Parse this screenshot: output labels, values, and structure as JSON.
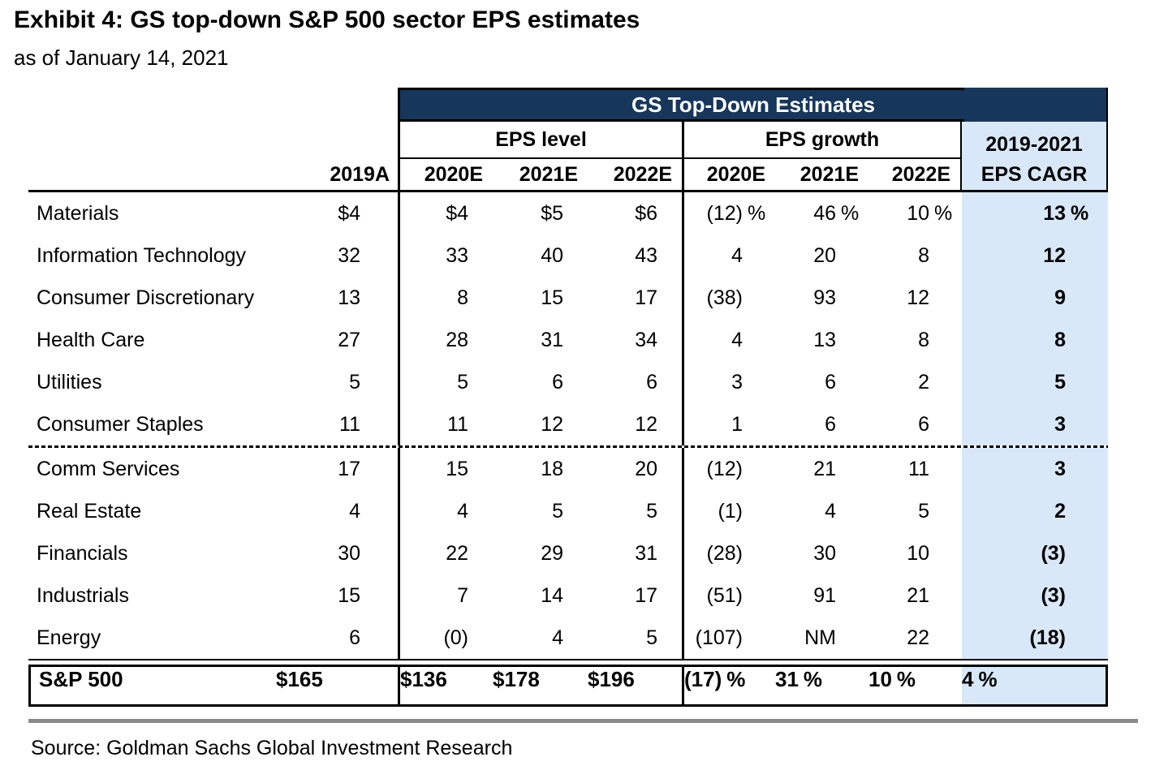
{
  "title": "Exhibit 4: GS top-down S&P 500 sector EPS estimates",
  "subtitle": "as of January 14, 2021",
  "colors": {
    "navy": "#16365C",
    "light_blue": "#D9E8F8"
  },
  "table": {
    "banner": "GS Top-Down Estimates",
    "group_headers": {
      "eps_level": "EPS level",
      "eps_growth": "EPS growth",
      "cagr_line1": "2019-2021",
      "cagr_line2": "EPS CAGR"
    },
    "col_headers": {
      "base_year": "2019A",
      "level_years": [
        "2020E",
        "2021E",
        "2022E"
      ],
      "growth_years": [
        "2020E",
        "2021E",
        "2022E"
      ]
    },
    "rows": [
      {
        "sector": "Materials",
        "eps_2019a": "$4",
        "level": [
          "$4",
          "$5",
          "$6"
        ],
        "growth": [
          "(12)%",
          "46 %",
          "10 %"
        ],
        "cagr": "13 %"
      },
      {
        "sector": "Information Technology",
        "eps_2019a": "32",
        "level": [
          "33",
          "40",
          "43"
        ],
        "growth": [
          "4",
          "20",
          "8"
        ],
        "cagr": "12"
      },
      {
        "sector": "Consumer Discretionary",
        "eps_2019a": "13",
        "level": [
          "8",
          "15",
          "17"
        ],
        "growth": [
          "(38)",
          "93",
          "12"
        ],
        "cagr": "9"
      },
      {
        "sector": "Health Care",
        "eps_2019a": "27",
        "level": [
          "28",
          "31",
          "34"
        ],
        "growth": [
          "4",
          "13",
          "8"
        ],
        "cagr": "8"
      },
      {
        "sector": "Utilities",
        "eps_2019a": "5",
        "level": [
          "5",
          "6",
          "6"
        ],
        "growth": [
          "3",
          "6",
          "2"
        ],
        "cagr": "5"
      },
      {
        "sector": "Consumer Staples",
        "eps_2019a": "11",
        "level": [
          "11",
          "12",
          "12"
        ],
        "growth": [
          "1",
          "6",
          "6"
        ],
        "cagr": "3"
      },
      {
        "sector": "Comm Services",
        "eps_2019a": "17",
        "level": [
          "15",
          "18",
          "20"
        ],
        "growth": [
          "(12)",
          "21",
          "11"
        ],
        "cagr": "3"
      },
      {
        "sector": "Real Estate",
        "eps_2019a": "4",
        "level": [
          "4",
          "5",
          "5"
        ],
        "growth": [
          "(1)",
          "4",
          "5"
        ],
        "cagr": "2"
      },
      {
        "sector": "Financials",
        "eps_2019a": "30",
        "level": [
          "22",
          "29",
          "31"
        ],
        "growth": [
          "(28)",
          "30",
          "10"
        ],
        "cagr": "(3)"
      },
      {
        "sector": "Industrials",
        "eps_2019a": "15",
        "level": [
          "7",
          "14",
          "17"
        ],
        "growth": [
          "(51)",
          "91",
          "21"
        ],
        "cagr": "(3)"
      },
      {
        "sector": "Energy",
        "eps_2019a": "6",
        "level": [
          "(0)",
          "4",
          "5"
        ],
        "growth": [
          "(107)",
          "NM",
          "22"
        ],
        "cagr": "(18)"
      }
    ],
    "dotted_divider_after_row": 6,
    "total_row": {
      "sector": "S&P 500",
      "eps_2019a": "$165",
      "level": [
        "$136",
        "$178",
        "$196"
      ],
      "growth": [
        "(17)%",
        "31 %",
        "10 %"
      ],
      "cagr": "4 %"
    }
  },
  "source": "Source: Goldman Sachs Global Investment Research"
}
